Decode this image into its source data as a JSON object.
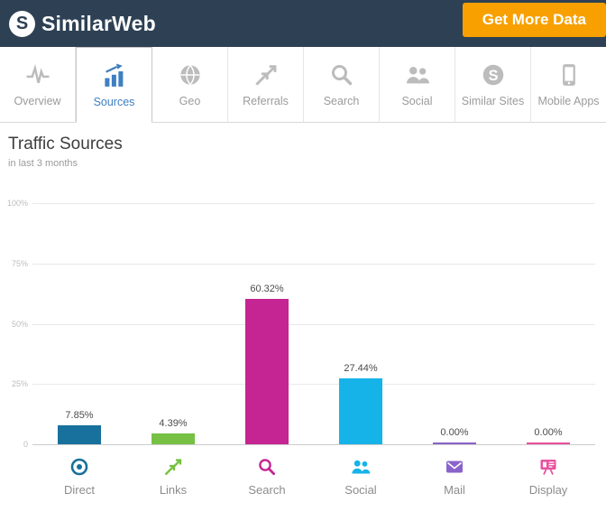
{
  "header": {
    "brand": "SimilarWeb",
    "logo_glyph": "S",
    "cta_label": "Get More Data"
  },
  "tabs": [
    {
      "label": "Overview",
      "icon": "activity-icon",
      "active": false
    },
    {
      "label": "Sources",
      "icon": "bar-chart-icon",
      "active": true
    },
    {
      "label": "Geo",
      "icon": "globe-icon",
      "active": false
    },
    {
      "label": "Referrals",
      "icon": "referral-arrows-icon",
      "active": false
    },
    {
      "label": "Search",
      "icon": "search-icon",
      "active": false
    },
    {
      "label": "Social",
      "icon": "people-icon",
      "active": false
    },
    {
      "label": "Similar Sites",
      "icon": "similarweb-mark-icon",
      "active": false
    },
    {
      "label": "Mobile Apps",
      "icon": "mobile-icon",
      "active": false
    }
  ],
  "page": {
    "title": "Traffic Sources",
    "subtitle": "in last 3 months"
  },
  "chart_data": {
    "type": "bar",
    "title": "Traffic Sources",
    "subtitle": "in last 3 months",
    "categories": [
      "Direct",
      "Links",
      "Search",
      "Social",
      "Mail",
      "Display"
    ],
    "values": [
      7.85,
      4.39,
      60.32,
      27.44,
      0,
      0
    ],
    "value_labels": [
      "7.85%",
      "4.39%",
      "60.32%",
      "27.44%",
      "0.00%",
      "0.00%"
    ],
    "bar_colors": [
      "#17719c",
      "#76c043",
      "#c42592",
      "#16b3e8",
      "#8a63c9",
      "#e8519e"
    ],
    "category_icons": [
      "target-icon",
      "links-arrows-icon",
      "search-icon",
      "people-icon",
      "mail-icon",
      "display-icon"
    ],
    "y_ticks": [
      "100%",
      "75%",
      "50%",
      "25%",
      "0"
    ],
    "ylim": [
      0,
      100
    ],
    "grid": true,
    "legend_position": "bottom"
  },
  "colors": {
    "header_bg": "#2e4154",
    "cta_bg": "#f7a000",
    "active_tab": "#3e7fc1",
    "inactive_tab": "#9b9b9b"
  }
}
